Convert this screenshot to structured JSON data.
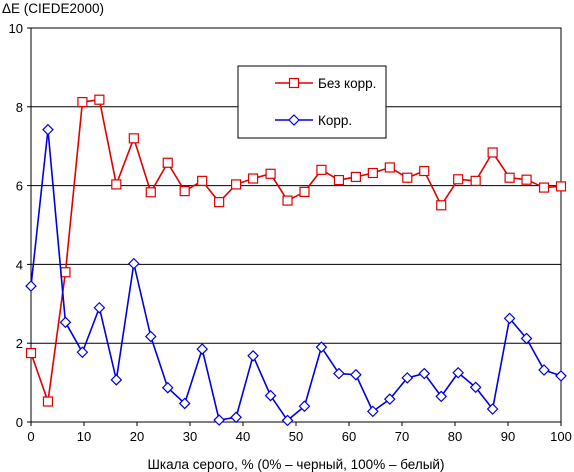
{
  "chart_data": {
    "type": "line",
    "ylabel": "ΔE (CIEDE2000)",
    "xlabel": "Шкала серого, % (0% – черный, 100% – белый)",
    "xlim": [
      0,
      100
    ],
    "ylim": [
      0,
      10
    ],
    "x_ticks": [
      "0",
      "10",
      "20",
      "30",
      "40",
      "50",
      "60",
      "70",
      "80",
      "90",
      "100"
    ],
    "y_ticks": [
      "0",
      "2",
      "4",
      "6",
      "8",
      "10"
    ],
    "grid": "horizontal",
    "legend_position": "top-center",
    "series": [
      {
        "name": "Без корр.",
        "color": "#e00000",
        "marker": "square",
        "x": [
          0,
          3.2,
          6.5,
          9.7,
          12.9,
          16.1,
          19.4,
          22.6,
          25.8,
          29,
          32.3,
          35.5,
          38.7,
          41.9,
          45.2,
          48.4,
          51.6,
          54.8,
          58.1,
          61.3,
          64.5,
          67.7,
          71,
          74.2,
          77.4,
          80.6,
          83.9,
          87.1,
          90.3,
          93.5,
          96.8,
          100
        ],
        "values": [
          1.75,
          0.52,
          3.8,
          8.12,
          8.18,
          6.03,
          7.2,
          5.83,
          6.58,
          5.86,
          6.12,
          5.58,
          6.03,
          6.18,
          6.3,
          5.62,
          5.84,
          6.4,
          6.14,
          6.22,
          6.32,
          6.46,
          6.2,
          6.37,
          5.5,
          6.16,
          6.12,
          6.84,
          6.2,
          6.15,
          5.95,
          5.98
        ]
      },
      {
        "name": "Корр.",
        "color": "#0000e0",
        "marker": "diamond",
        "x": [
          0,
          3.2,
          6.5,
          9.7,
          12.9,
          16.1,
          19.4,
          22.6,
          25.8,
          29,
          32.3,
          35.5,
          38.7,
          41.9,
          45.2,
          48.4,
          51.6,
          54.8,
          58.1,
          61.3,
          64.5,
          67.7,
          71,
          74.2,
          77.4,
          80.6,
          83.9,
          87.1,
          90.3,
          93.5,
          96.8,
          100
        ],
        "values": [
          3.45,
          7.42,
          2.53,
          1.77,
          2.9,
          1.07,
          4.02,
          2.17,
          0.87,
          0.47,
          1.85,
          0.05,
          0.12,
          1.68,
          0.67,
          0.04,
          0.4,
          1.9,
          1.23,
          1.2,
          0.27,
          0.58,
          1.12,
          1.23,
          0.65,
          1.25,
          0.88,
          0.33,
          2.63,
          2.12,
          1.32,
          1.17
        ]
      }
    ]
  }
}
